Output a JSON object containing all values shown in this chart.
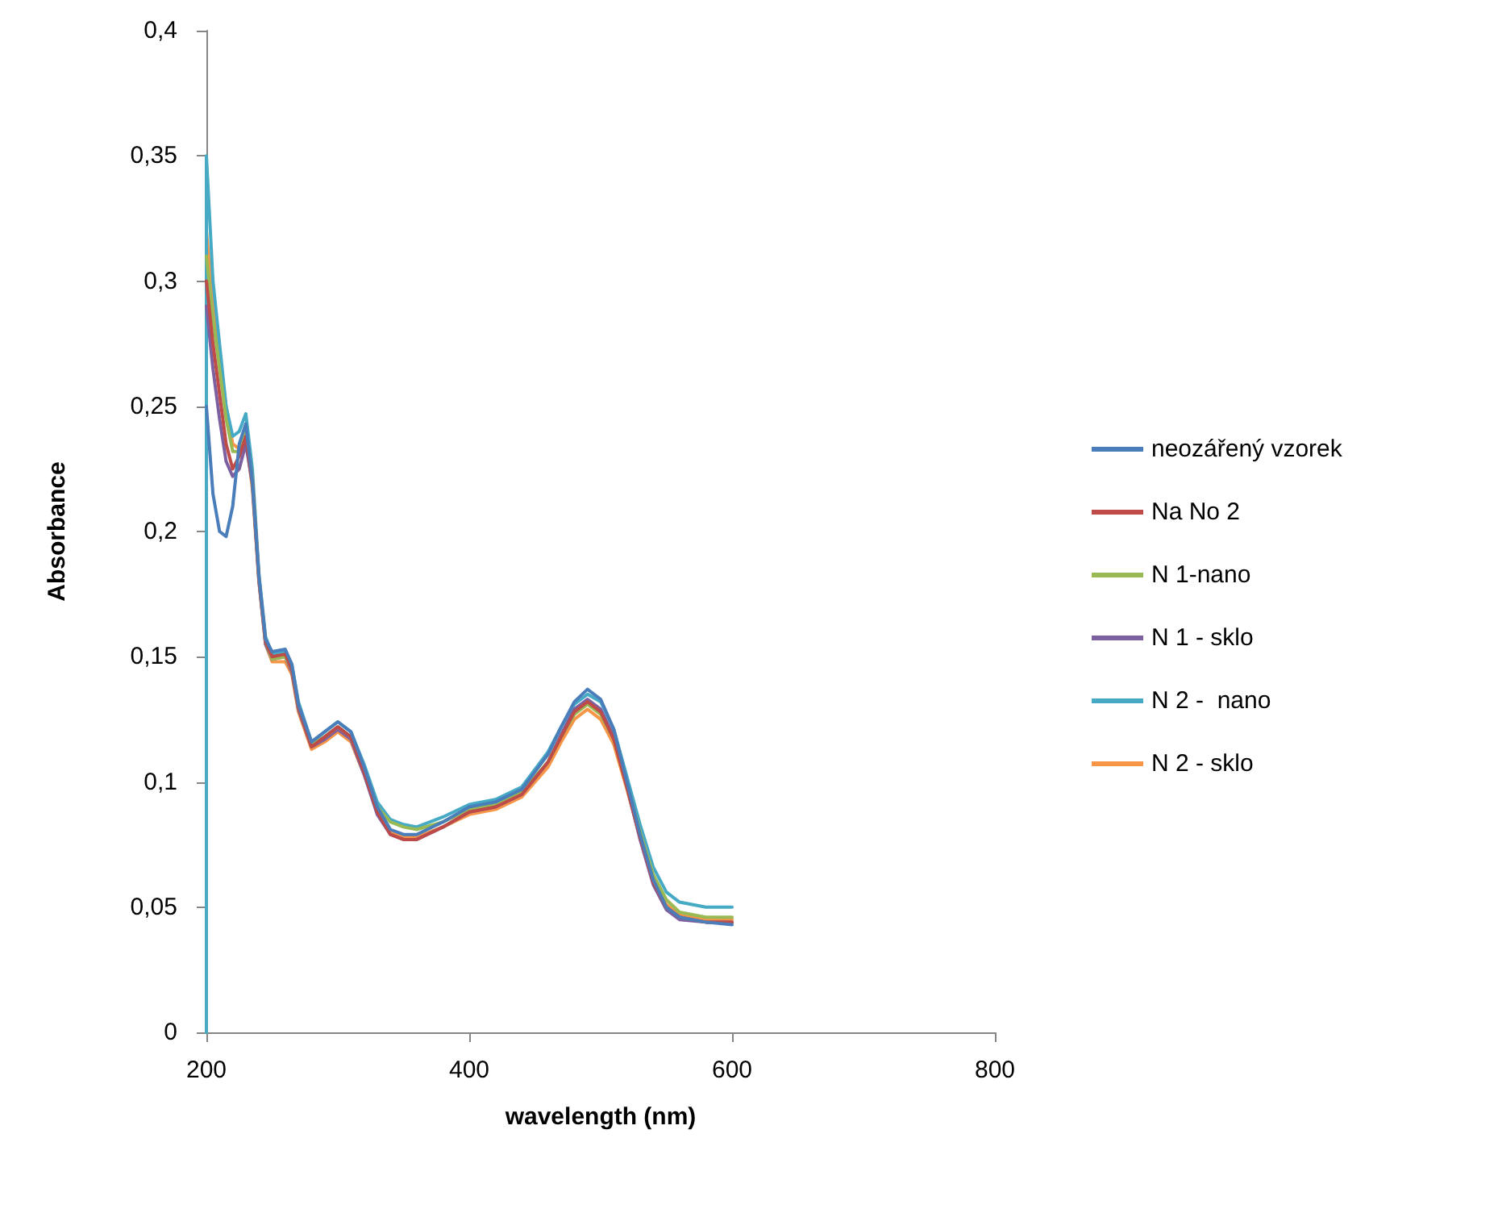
{
  "chart_data": {
    "type": "line",
    "xlabel": "wavelength (nm)",
    "ylabel": "Absorbance",
    "xlim": [
      200,
      800
    ],
    "xticks": [
      200,
      400,
      600,
      800
    ],
    "ylim": [
      0,
      0.4
    ],
    "yticks": [
      {
        "value": 0,
        "label": "0"
      },
      {
        "value": 0.05,
        "label": "0,05"
      },
      {
        "value": 0.1,
        "label": "0,1"
      },
      {
        "value": 0.15,
        "label": "0,15"
      },
      {
        "value": 0.2,
        "label": "0,2"
      },
      {
        "value": 0.25,
        "label": "0,25"
      },
      {
        "value": 0.3,
        "label": "0,3"
      },
      {
        "value": 0.35,
        "label": "0,35"
      },
      {
        "value": 0.4,
        "label": "0,4"
      }
    ],
    "grid": false,
    "legend": "right",
    "marker": "none",
    "line_style": "solid",
    "x": [
      200,
      205,
      210,
      215,
      220,
      225,
      230,
      235,
      240,
      245,
      250,
      260,
      265,
      270,
      280,
      290,
      300,
      310,
      320,
      330,
      340,
      350,
      360,
      380,
      400,
      420,
      440,
      460,
      470,
      480,
      490,
      500,
      510,
      520,
      530,
      540,
      550,
      560,
      580,
      600
    ],
    "series": [
      {
        "name": "neozářený vzorek",
        "color": "#4a7ebb",
        "values": [
          0.25,
          0.215,
          0.2,
          0.198,
          0.21,
          0.235,
          0.243,
          0.22,
          0.182,
          0.157,
          0.152,
          0.153,
          0.147,
          0.131,
          0.116,
          0.12,
          0.124,
          0.12,
          0.106,
          0.09,
          0.081,
          0.079,
          0.079,
          0.084,
          0.09,
          0.092,
          0.097,
          0.111,
          0.122,
          0.132,
          0.137,
          0.133,
          0.121,
          0.1,
          0.079,
          0.061,
          0.05,
          0.046,
          0.044,
          0.043
        ]
      },
      {
        "name": "Na No 2",
        "color": "#be4b48",
        "values": [
          0.3,
          0.275,
          0.255,
          0.235,
          0.225,
          0.23,
          0.238,
          0.22,
          0.181,
          0.156,
          0.15,
          0.151,
          0.145,
          0.13,
          0.114,
          0.118,
          0.122,
          0.118,
          0.104,
          0.088,
          0.079,
          0.077,
          0.077,
          0.082,
          0.088,
          0.09,
          0.095,
          0.108,
          0.118,
          0.128,
          0.132,
          0.128,
          0.117,
          0.098,
          0.078,
          0.06,
          0.05,
          0.046,
          0.044,
          0.044
        ]
      },
      {
        "name": "N 1-nano",
        "color": "#98b954",
        "values": [
          0.31,
          0.285,
          0.265,
          0.245,
          0.232,
          0.232,
          0.24,
          0.221,
          0.181,
          0.156,
          0.149,
          0.15,
          0.145,
          0.13,
          0.115,
          0.118,
          0.122,
          0.118,
          0.105,
          0.09,
          0.084,
          0.082,
          0.081,
          0.084,
          0.089,
          0.091,
          0.096,
          0.108,
          0.118,
          0.127,
          0.131,
          0.127,
          0.117,
          0.099,
          0.08,
          0.063,
          0.053,
          0.048,
          0.046,
          0.046
        ]
      },
      {
        "name": "N 1 - sklo",
        "color": "#7d60a0",
        "values": [
          0.29,
          0.265,
          0.245,
          0.228,
          0.222,
          0.225,
          0.235,
          0.219,
          0.18,
          0.155,
          0.149,
          0.15,
          0.144,
          0.129,
          0.114,
          0.117,
          0.121,
          0.117,
          0.103,
          0.087,
          0.079,
          0.077,
          0.077,
          0.082,
          0.088,
          0.09,
          0.095,
          0.108,
          0.119,
          0.129,
          0.133,
          0.129,
          0.118,
          0.098,
          0.077,
          0.059,
          0.049,
          0.045,
          0.044,
          0.044
        ]
      },
      {
        "name": "N 2 -  nano",
        "color": "#46aac5",
        "x": [
          200,
          200,
          205,
          210,
          215,
          220,
          225,
          230,
          235,
          240,
          245,
          250,
          260,
          265,
          270,
          280,
          290,
          300,
          310,
          320,
          330,
          340,
          350,
          360,
          380,
          400,
          420,
          440,
          460,
          470,
          480,
          490,
          500,
          510,
          520,
          530,
          540,
          550,
          560,
          580,
          600
        ],
        "values": [
          0,
          0.35,
          0.3,
          0.275,
          0.25,
          0.238,
          0.24,
          0.247,
          0.225,
          0.183,
          0.158,
          0.151,
          0.152,
          0.147,
          0.132,
          0.116,
          0.12,
          0.124,
          0.12,
          0.107,
          0.092,
          0.085,
          0.083,
          0.082,
          0.086,
          0.091,
          0.093,
          0.098,
          0.112,
          0.122,
          0.131,
          0.135,
          0.132,
          0.121,
          0.102,
          0.083,
          0.066,
          0.056,
          0.052,
          0.05,
          0.05
        ]
      },
      {
        "name": "N 2 - sklo",
        "color": "#f79646",
        "values": [
          0.32,
          0.29,
          0.27,
          0.25,
          0.235,
          0.233,
          0.238,
          0.217,
          0.18,
          0.155,
          0.148,
          0.148,
          0.143,
          0.128,
          0.113,
          0.116,
          0.12,
          0.116,
          0.103,
          0.088,
          0.08,
          0.078,
          0.078,
          0.082,
          0.087,
          0.089,
          0.094,
          0.106,
          0.116,
          0.125,
          0.129,
          0.125,
          0.115,
          0.097,
          0.078,
          0.061,
          0.051,
          0.047,
          0.045,
          0.045
        ]
      }
    ]
  }
}
